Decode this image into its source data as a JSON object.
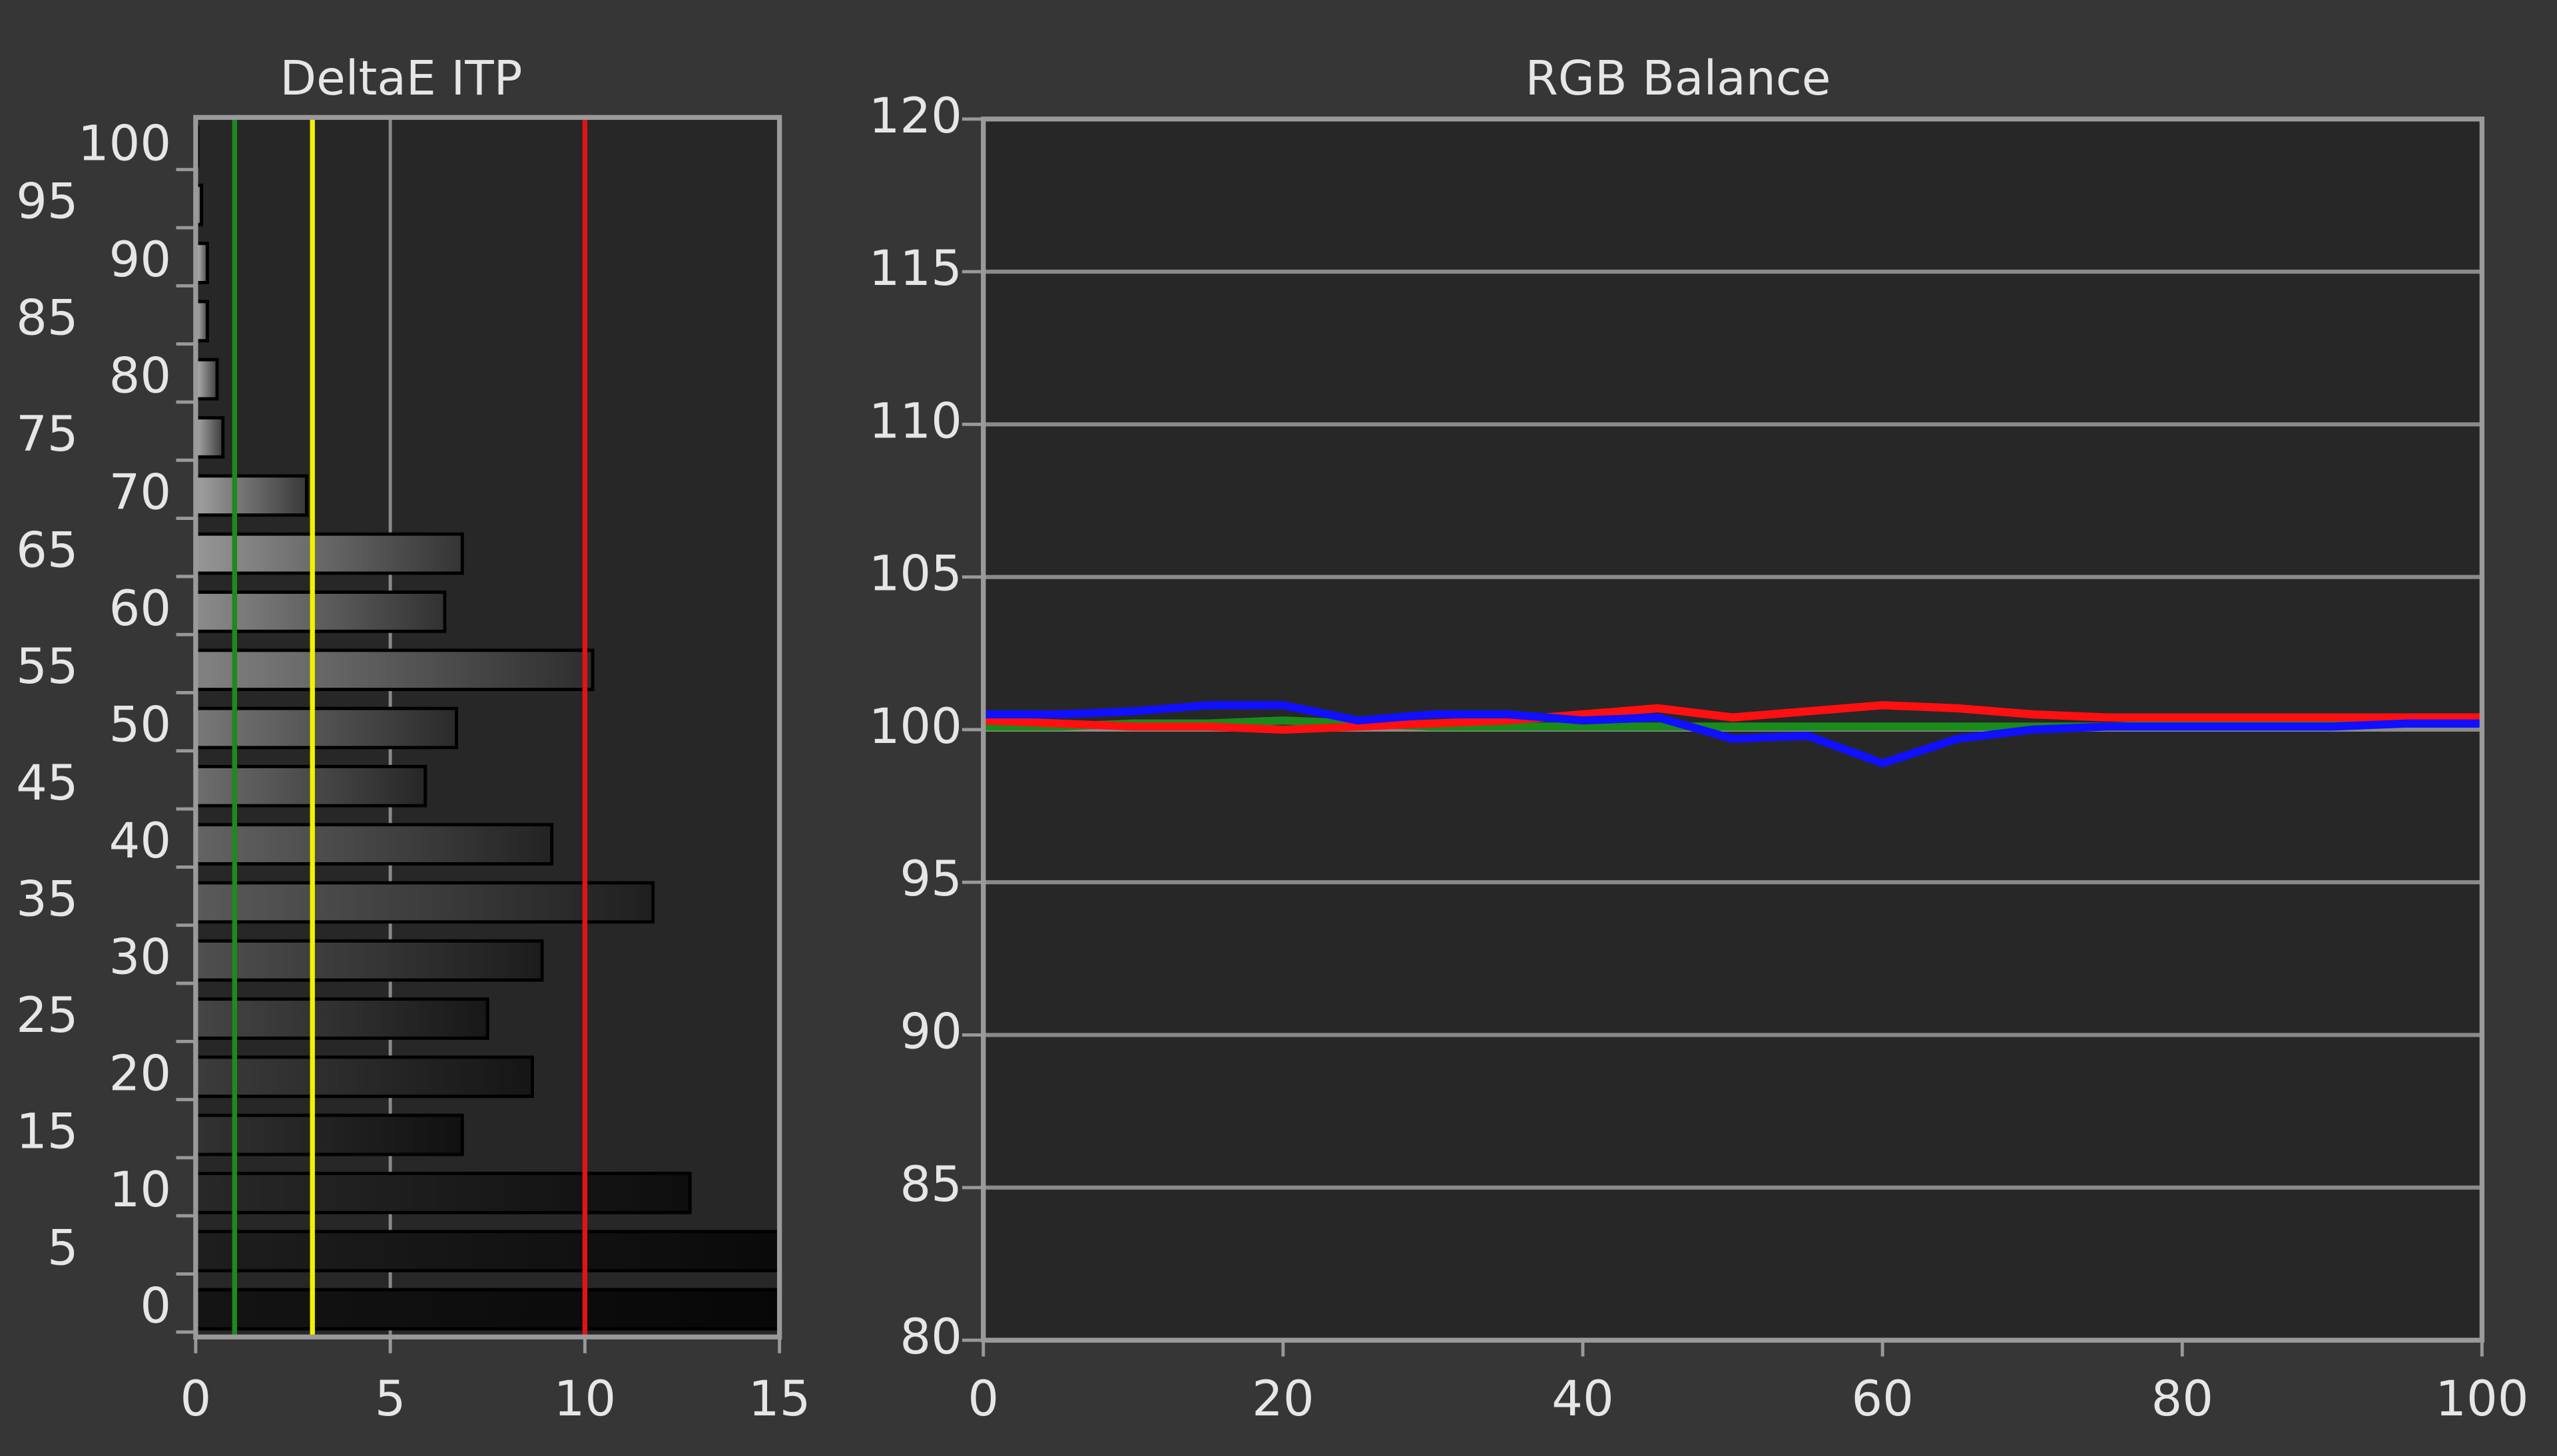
{
  "chart_data": [
    {
      "type": "hbar",
      "title": "DeltaE ITP",
      "categories": [
        0,
        5,
        10,
        15,
        20,
        25,
        30,
        35,
        40,
        45,
        50,
        55,
        60,
        65,
        70,
        75,
        80,
        85,
        90,
        95,
        100
      ],
      "values": [
        15,
        15,
        12.7,
        6.85,
        8.65,
        7.5,
        8.9,
        11.75,
        9.15,
        5.9,
        6.7,
        10.2,
        6.4,
        6.85,
        2.85,
        0.7,
        0.55,
        0.3,
        0.3,
        0.15,
        0.05
      ],
      "xlim": [
        0,
        15
      ],
      "xticks": [
        0,
        5,
        10,
        15
      ],
      "grid": true,
      "reference_lines": [
        {
          "value": 1,
          "color": "#1e8a1e"
        },
        {
          "value": 3,
          "color": "#f2f200"
        },
        {
          "value": 10,
          "color": "#e01414"
        }
      ]
    },
    {
      "type": "line",
      "title": "RGB Balance",
      "x": [
        0,
        5,
        10,
        15,
        20,
        25,
        30,
        35,
        40,
        45,
        50,
        55,
        60,
        65,
        70,
        75,
        80,
        85,
        90,
        95,
        100
      ],
      "series": [
        {
          "color": "#1a8a1a",
          "values": [
            100.1,
            100.1,
            100.2,
            100.2,
            100.3,
            100.2,
            100.1,
            100.1,
            100.1,
            100.1,
            100.1,
            100.1,
            100.1,
            100.1,
            100.1,
            100.1,
            100.2,
            100.2,
            100.2,
            100.2,
            100.2
          ]
        },
        {
          "color": "#ff1010",
          "values": [
            100.3,
            100.2,
            100.1,
            100.1,
            100.0,
            100.1,
            100.2,
            100.3,
            100.5,
            100.7,
            100.4,
            100.6,
            100.8,
            100.7,
            100.5,
            100.4,
            100.4,
            100.4,
            100.4,
            100.4,
            100.4
          ]
        },
        {
          "color": "#1010ff",
          "values": [
            100.5,
            100.5,
            100.6,
            100.8,
            100.8,
            100.3,
            100.5,
            100.5,
            100.3,
            100.4,
            99.7,
            99.8,
            98.9,
            99.7,
            100.0,
            100.1,
            100.1,
            100.1,
            100.1,
            100.2,
            100.2
          ]
        }
      ],
      "xlim": [
        0,
        100
      ],
      "xticks": [
        0,
        20,
        40,
        60,
        80,
        100
      ],
      "ylim": [
        80,
        120
      ],
      "yticks": [
        80,
        85,
        90,
        95,
        100,
        105,
        110,
        115,
        120
      ],
      "grid": true
    }
  ]
}
